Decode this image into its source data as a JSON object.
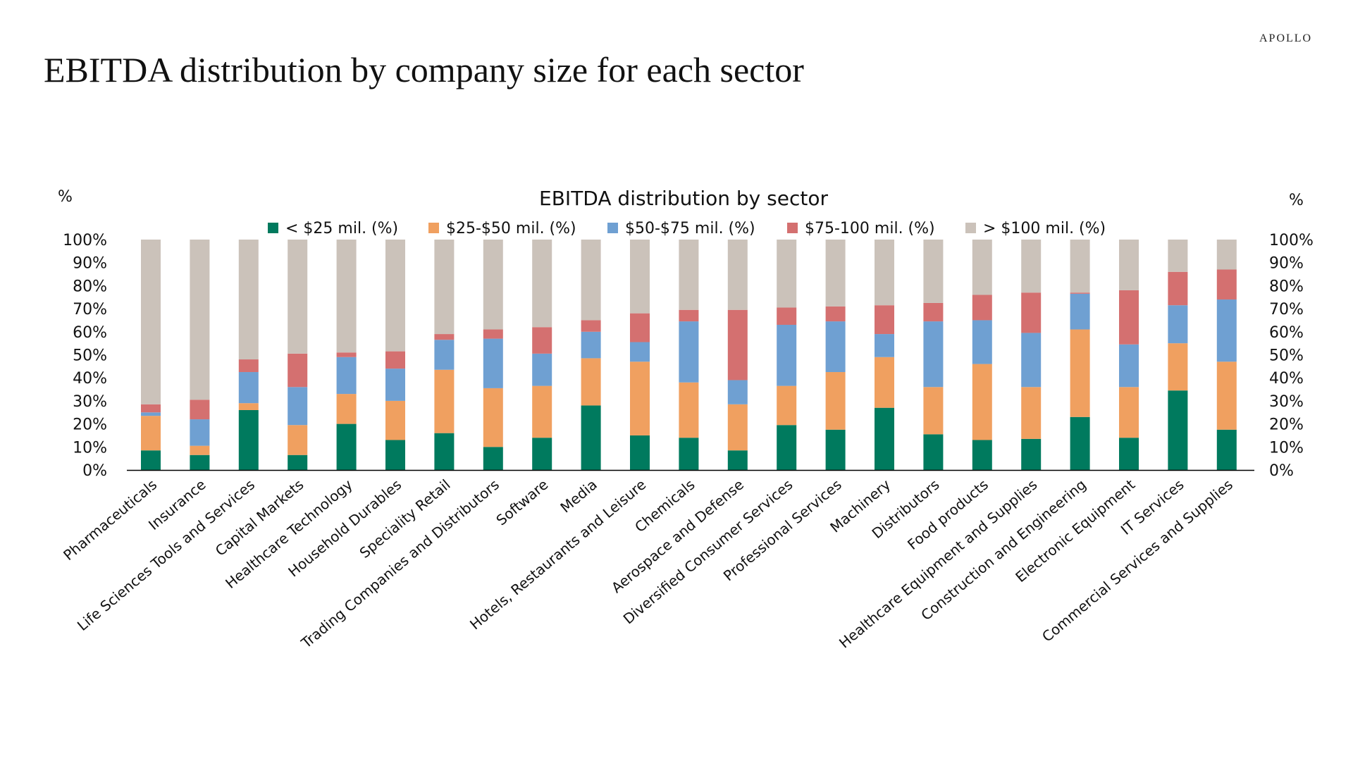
{
  "header": {
    "brand": "APOLLO",
    "title": "EBITDA distribution by company size for each sector"
  },
  "chart_data": {
    "type": "bar",
    "stacked": true,
    "title": "EBITDA distribution by sector",
    "ylabel_left": "%",
    "ylabel_right": "%",
    "ylim": [
      0,
      100
    ],
    "yticks": [
      "0%",
      "10%",
      "20%",
      "30%",
      "40%",
      "50%",
      "60%",
      "70%",
      "80%",
      "90%",
      "100%"
    ],
    "legend_position": "top",
    "categories": [
      "Pharmaceuticals",
      "Insurance",
      "Life Sciences Tools and Services",
      "Capital Markets",
      "Healthcare Technology",
      "Household Durables",
      "Speciality Retail",
      "Trading Companies and Distributors",
      "Software",
      "Media",
      "Hotels, Restaurants and Leisure",
      "Chemicals",
      "Aerospace and Defense",
      "Diversified Consumer Services",
      "Professional Services",
      "Machinery",
      "Distributors",
      "Food products",
      "Healthcare Equipment and Supplies",
      "Construction and Engineering",
      "Electronic Equipment",
      "IT Services",
      "Commercial Services and Supplies"
    ],
    "series": [
      {
        "name": "< $25 mil. (%)",
        "color": "#007a5e",
        "values": [
          8.5,
          6.5,
          26,
          6.5,
          20,
          13,
          16,
          10,
          14,
          28,
          15,
          14,
          8.5,
          19.5,
          17.5,
          27,
          15.5,
          13,
          13.5,
          23,
          14,
          34.5,
          17.5
        ]
      },
      {
        "name": "$25-$50 mil. (%)",
        "color": "#f0a060",
        "values": [
          15,
          4,
          3,
          13,
          13,
          17,
          27.5,
          25.5,
          22.5,
          20.5,
          32,
          24,
          20,
          17,
          25,
          22,
          20.5,
          33,
          22.5,
          38,
          22,
          20.5,
          29.5
        ]
      },
      {
        "name": "$50-$75 mil. (%)",
        "color": "#6fa0d2",
        "values": [
          1.5,
          11.5,
          13.5,
          16.5,
          16,
          14,
          13,
          21.5,
          14,
          11.5,
          8.5,
          26.5,
          10.5,
          26.5,
          22,
          10,
          28.5,
          19,
          23.5,
          15.5,
          18.5,
          16.5,
          27
        ]
      },
      {
        "name": "$75-100 mil. (%)",
        "color": "#d47070",
        "values": [
          3.5,
          8.5,
          5.5,
          14.5,
          2,
          7.5,
          2.5,
          4,
          11.5,
          5,
          12.5,
          5,
          30.5,
          7.5,
          6.5,
          12.5,
          8,
          11,
          17.5,
          0.5,
          23.5,
          14.5,
          13
        ]
      },
      {
        "name": "> $100 mil. (%)",
        "color": "#cbc2ba",
        "values": [
          71.5,
          69.5,
          52,
          49.5,
          49,
          48.5,
          41,
          39,
          38,
          35,
          32,
          30.5,
          30.5,
          29.5,
          29,
          28.5,
          27.5,
          24,
          23,
          23,
          22,
          14,
          13
        ]
      }
    ]
  }
}
